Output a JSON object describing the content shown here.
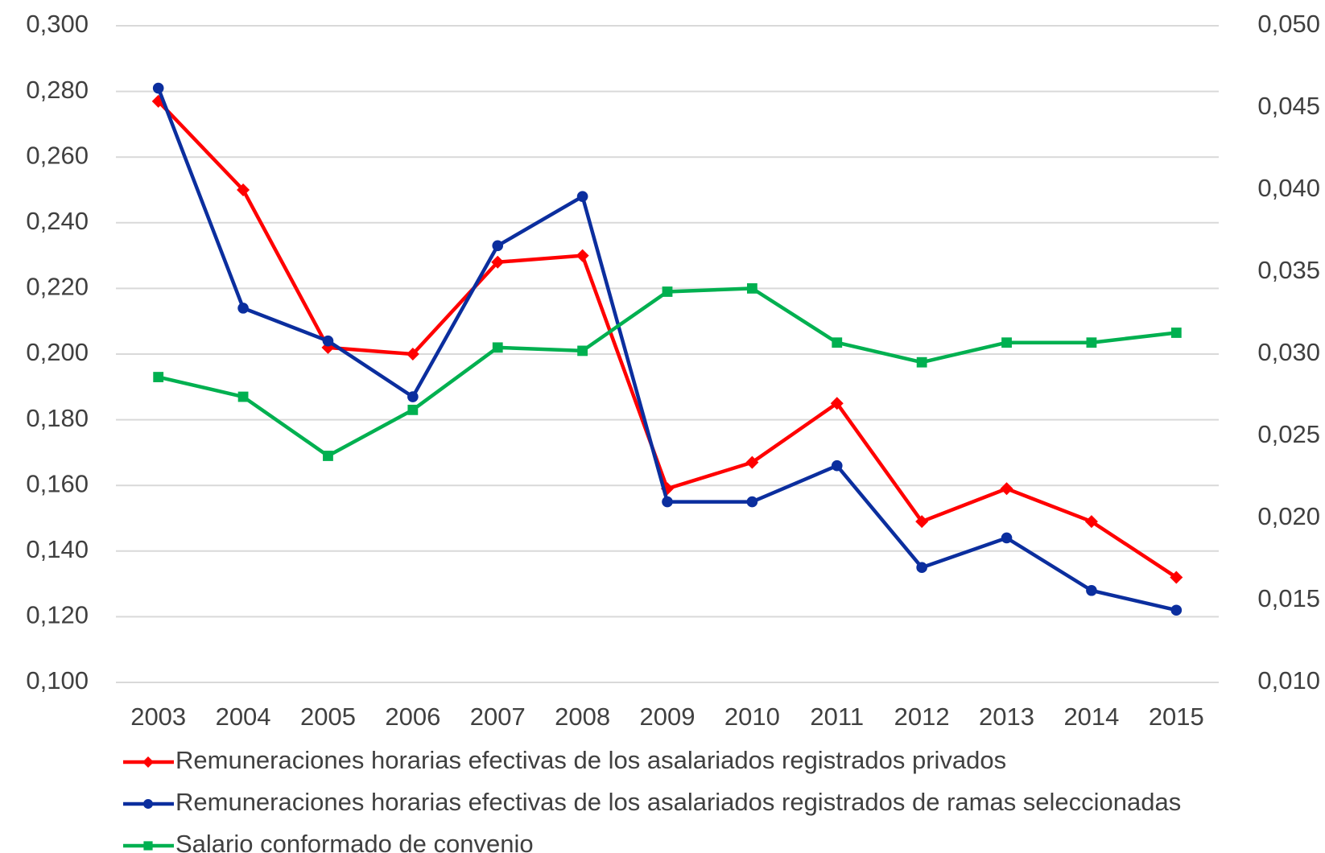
{
  "chart_data": {
    "type": "line",
    "categories": [
      "2003",
      "2004",
      "2005",
      "2006",
      "2007",
      "2008",
      "2009",
      "2010",
      "2011",
      "2012",
      "2013",
      "2014",
      "2015"
    ],
    "series": [
      {
        "name": "Remuneraciones horarias efectivas de los asalariados registrados privados",
        "color": "#ff0000",
        "marker": "diamond",
        "values": [
          0.277,
          0.25,
          0.202,
          0.2,
          0.228,
          0.23,
          0.159,
          0.167,
          0.185,
          0.149,
          0.159,
          0.149,
          0.132
        ]
      },
      {
        "name": "Remuneraciones horarias efectivas de los asalariados registrados de ramas seleccionadas",
        "color": "#0b2e9e",
        "marker": "circle",
        "values": [
          0.281,
          0.214,
          0.204,
          0.187,
          0.233,
          0.248,
          0.155,
          0.155,
          0.166,
          0.135,
          0.144,
          0.128,
          0.122
        ]
      },
      {
        "name": "Salario conformado de convenio",
        "color": "#00b050",
        "marker": "square",
        "axis": "y2",
        "values": [
          0.0286,
          0.0274,
          0.0238,
          0.0266,
          0.0304,
          0.0302,
          0.0338,
          0.034,
          0.0307,
          0.0295,
          0.0307,
          0.0307,
          0.0313
        ]
      }
    ],
    "ylim": [
      0.1,
      0.3
    ],
    "yticks": [
      {
        "value": 0.1,
        "label": "0,100"
      },
      {
        "value": 0.12,
        "label": "0,120"
      },
      {
        "value": 0.14,
        "label": "0,140"
      },
      {
        "value": 0.16,
        "label": "0,160"
      },
      {
        "value": 0.18,
        "label": "0,180"
      },
      {
        "value": 0.2,
        "label": "0,200"
      },
      {
        "value": 0.22,
        "label": "0,220"
      },
      {
        "value": 0.24,
        "label": "0,240"
      },
      {
        "value": 0.26,
        "label": "0,260"
      },
      {
        "value": 0.28,
        "label": "0,280"
      },
      {
        "value": 0.3,
        "label": "0,300"
      }
    ],
    "y2lim": [
      0.01,
      0.05
    ],
    "y2ticks": [
      {
        "value": 0.01,
        "label": "0,010"
      },
      {
        "value": 0.015,
        "label": "0,015"
      },
      {
        "value": 0.02,
        "label": "0,020"
      },
      {
        "value": 0.025,
        "label": "0,025"
      },
      {
        "value": 0.03,
        "label": "0,030"
      },
      {
        "value": 0.035,
        "label": "0,035"
      },
      {
        "value": 0.04,
        "label": "0,040"
      },
      {
        "value": 0.045,
        "label": "0,045"
      },
      {
        "value": 0.05,
        "label": "0,050"
      }
    ],
    "grid": true,
    "legend": "bottom"
  }
}
